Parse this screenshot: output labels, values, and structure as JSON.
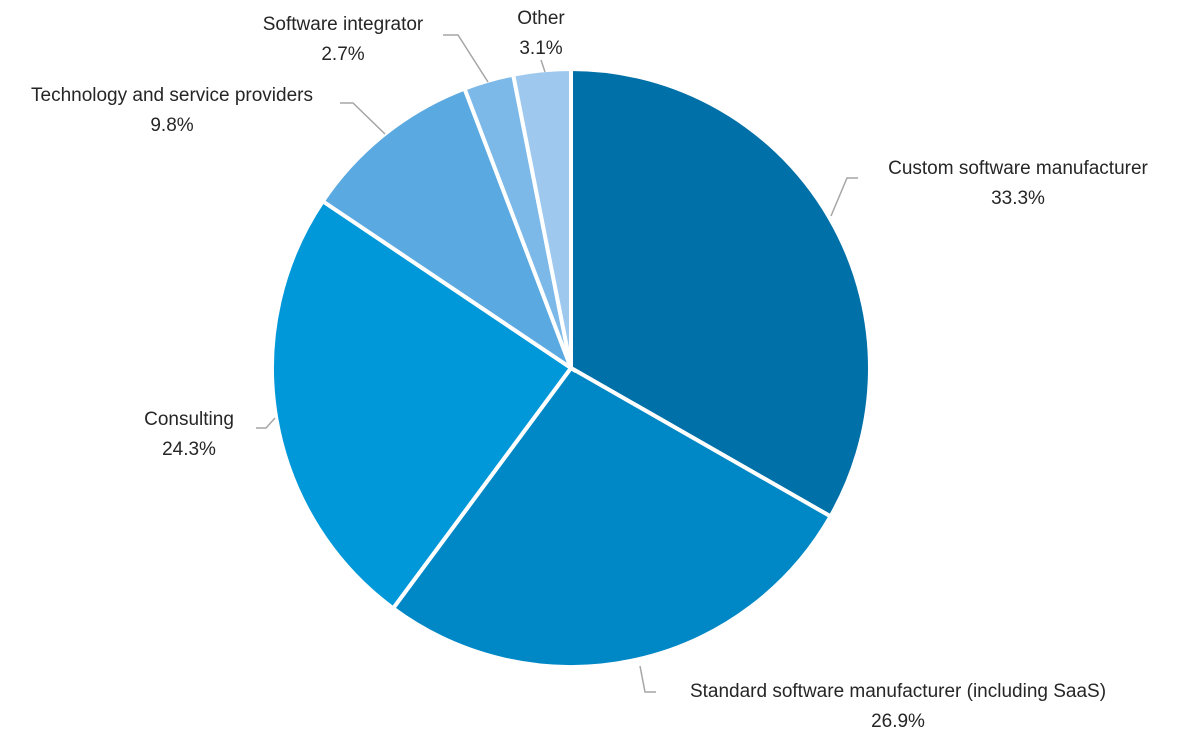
{
  "chart_data": {
    "type": "pie",
    "title": "",
    "slices": [
      {
        "label": "Custom software manufacturer",
        "value": 33.3,
        "value_label": "33.3%",
        "color": "#0070a8"
      },
      {
        "label": "Standard software manufacturer (including SaaS)",
        "value": 26.9,
        "value_label": "26.9%",
        "color": "#0088c6"
      },
      {
        "label": "Consulting",
        "value": 24.3,
        "value_label": "24.3%",
        "color": "#0098d9"
      },
      {
        "label": "Technology and service providers",
        "value": 9.8,
        "value_label": "9.8%",
        "color": "#5aa9e1"
      },
      {
        "label": "Software integrator",
        "value": 2.7,
        "value_label": "2.7%",
        "color": "#7cb9e8"
      },
      {
        "label": "Other",
        "value": 3.1,
        "value_label": "3.1%",
        "color": "#9fc8ee"
      }
    ],
    "start_angle": "12 o'clock",
    "direction": "clockwise",
    "legend": "none",
    "data_labels": "outside with leader lines"
  }
}
